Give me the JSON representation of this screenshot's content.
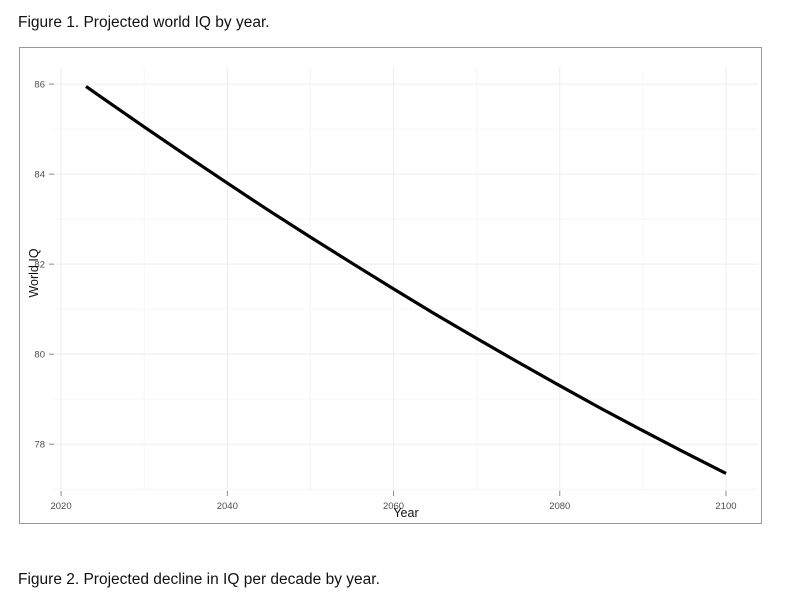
{
  "page": {
    "figure1_caption": "Figure 1. Projected world IQ by year.",
    "figure2_caption": "Figure 2. Projected decline in IQ per decade by year."
  },
  "chart_data": {
    "type": "line",
    "title": "",
    "xlabel": "Year",
    "ylabel": "World IQ",
    "x": [
      2023,
      2025,
      2030,
      2035,
      2040,
      2045,
      2050,
      2055,
      2060,
      2065,
      2070,
      2075,
      2080,
      2085,
      2090,
      2095,
      2100
    ],
    "y": [
      85.95,
      85.69,
      85.05,
      84.42,
      83.8,
      83.19,
      82.6,
      82.02,
      81.45,
      80.89,
      80.35,
      79.82,
      79.3,
      78.79,
      78.3,
      77.82,
      77.35
    ],
    "xlim": [
      2019.15,
      2103.85
    ],
    "ylim": [
      76.96,
      86.38
    ],
    "x_major_ticks": [
      2020,
      2040,
      2060,
      2080,
      2100
    ],
    "x_minor_ticks": [
      2030,
      2050,
      2070,
      2090
    ],
    "y_major_ticks": [
      78,
      80,
      82,
      84,
      86
    ],
    "y_minor_ticks": [
      77,
      79,
      81,
      83,
      85
    ],
    "grid": true,
    "legend": false,
    "line_color": "#000000",
    "line_width": 3.2,
    "theme": {
      "panel_background": "#ffffff",
      "grid_major_color": "#ededed",
      "grid_minor_color": "#f6f6f6",
      "tick_mark_color": "#8a8a8a",
      "tick_label_color": "#4d4d4d",
      "figure_border_color": "#999999",
      "caption_color": "#111111"
    }
  }
}
